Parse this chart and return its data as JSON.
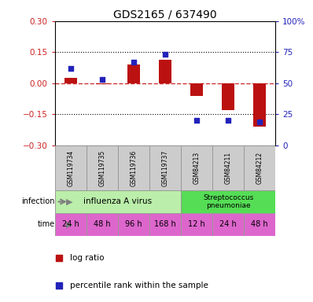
{
  "title": "GDS2165 / 637490",
  "samples": [
    "GSM119734",
    "GSM119735",
    "GSM119736",
    "GSM119737",
    "GSM84213",
    "GSM84211",
    "GSM84212"
  ],
  "log_ratio": [
    0.025,
    -0.005,
    0.09,
    0.115,
    -0.06,
    -0.13,
    -0.21
  ],
  "percentile_rank": [
    62,
    53,
    67,
    73,
    20,
    20,
    19
  ],
  "ylim_left": [
    -0.3,
    0.3
  ],
  "ylim_right": [
    0,
    100
  ],
  "yticks_left": [
    -0.3,
    -0.15,
    0,
    0.15,
    0.3
  ],
  "yticks_right": [
    0,
    25,
    50,
    75,
    100
  ],
  "ytick_right_labels": [
    "0",
    "25",
    "50",
    "75",
    "100%"
  ],
  "hlines": [
    0.15,
    -0.15
  ],
  "bar_color": "#bb1111",
  "dot_color": "#2222bb",
  "zero_line_color": "#cc3333",
  "influenza_color": "#bbeeaa",
  "strep_color": "#55dd55",
  "time_color": "#dd66cc",
  "sample_bg_color": "#cccccc",
  "time_labels": [
    "24 h",
    "48 h",
    "96 h",
    "168 h",
    "12 h",
    "24 h",
    "48 h"
  ],
  "infection_label": "infection",
  "time_label": "time",
  "legend_bar_label": "log ratio",
  "legend_dot_label": "percentile rank within the sample"
}
